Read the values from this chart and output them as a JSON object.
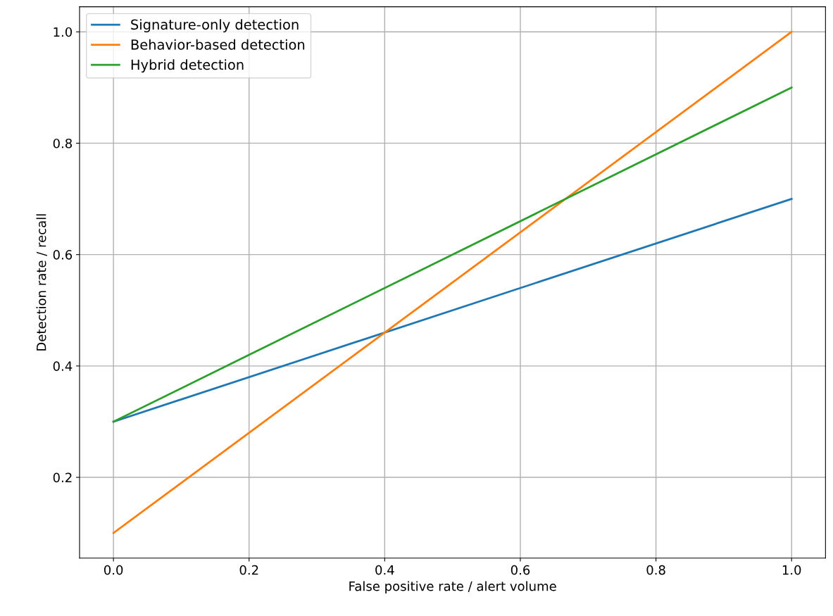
{
  "chart_data": {
    "type": "line",
    "xlabel": "False positive rate / alert volume",
    "ylabel": "Detection rate / recall",
    "x": [
      0.0,
      1.0
    ],
    "series": [
      {
        "name": "Signature-only detection",
        "color": "#1f77b4",
        "values": [
          0.3,
          0.7
        ]
      },
      {
        "name": "Behavior-based detection",
        "color": "#ff7f0e",
        "values": [
          0.1,
          1.0
        ]
      },
      {
        "name": "Hybrid detection",
        "color": "#2ca02c",
        "values": [
          0.3,
          0.9
        ]
      }
    ],
    "xlim": [
      -0.05,
      1.05
    ],
    "ylim": [
      0.055,
      1.045
    ],
    "xticks": [
      {
        "value": 0.0,
        "label": "0.0"
      },
      {
        "value": 0.2,
        "label": "0.2"
      },
      {
        "value": 0.4,
        "label": "0.4"
      },
      {
        "value": 0.6,
        "label": "0.6"
      },
      {
        "value": 0.8,
        "label": "0.8"
      },
      {
        "value": 1.0,
        "label": "1.0"
      }
    ],
    "yticks": [
      {
        "value": 0.2,
        "label": "0.2"
      },
      {
        "value": 0.4,
        "label": "0.4"
      },
      {
        "value": 0.6,
        "label": "0.6"
      },
      {
        "value": 0.8,
        "label": "0.8"
      },
      {
        "value": 1.0,
        "label": "1.0"
      }
    ],
    "grid": true,
    "legend": "top left",
    "marker": "none",
    "line_style": "solid"
  }
}
